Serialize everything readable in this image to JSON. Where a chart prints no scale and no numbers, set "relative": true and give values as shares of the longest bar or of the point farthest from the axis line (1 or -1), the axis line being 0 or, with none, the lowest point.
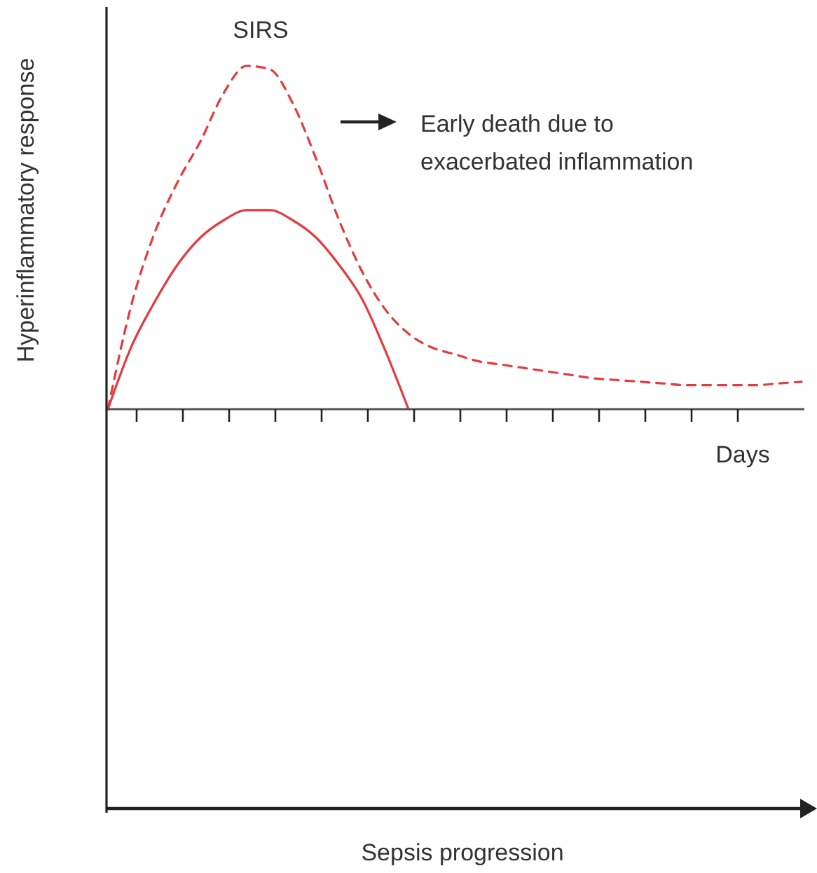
{
  "chart_data": {
    "type": "line",
    "relative": true,
    "xlabel": "Days",
    "ylabel": "Hyperinflammatory response",
    "grid": false,
    "marker": "none",
    "categories": [
      null,
      null,
      null,
      null,
      null,
      null,
      null,
      null,
      null,
      null,
      null,
      null,
      null,
      null,
      null,
      null,
      null,
      null,
      null,
      null,
      null,
      null,
      null,
      null,
      null,
      null,
      null,
      null,
      null,
      null,
      null
    ],
    "series": [
      {
        "color": "#e8393c",
        "line_style": "dashed",
        "values": [
          0,
          0.3,
          0.51,
          0.66,
          0.78,
          0.92,
          1,
          0.99,
          0.89,
          0.73,
          0.55,
          0.4,
          0.29,
          0.22,
          0.18,
          0.16,
          0.14,
          0.13,
          0.12,
          0.11,
          0.1,
          0.09,
          0.085,
          0.08,
          0.075,
          0.07,
          0.07,
          0.07,
          0.07,
          0.075,
          0.08
        ]
      },
      {
        "color": "#e8393c",
        "line_style": "solid",
        "values": [
          0,
          0.18,
          0.31,
          0.42,
          0.5,
          0.55,
          0.58,
          0.58,
          0.55,
          0.5,
          0.42,
          0.32,
          0.17,
          0,
          null,
          null,
          null,
          null,
          null,
          null,
          null,
          null,
          null,
          null,
          null,
          null,
          null,
          null,
          null,
          null,
          null
        ]
      }
    ],
    "annotations": [
      "SIRS",
      "Early death due to exacerbated inflammation",
      "Sepsis progression"
    ]
  }
}
